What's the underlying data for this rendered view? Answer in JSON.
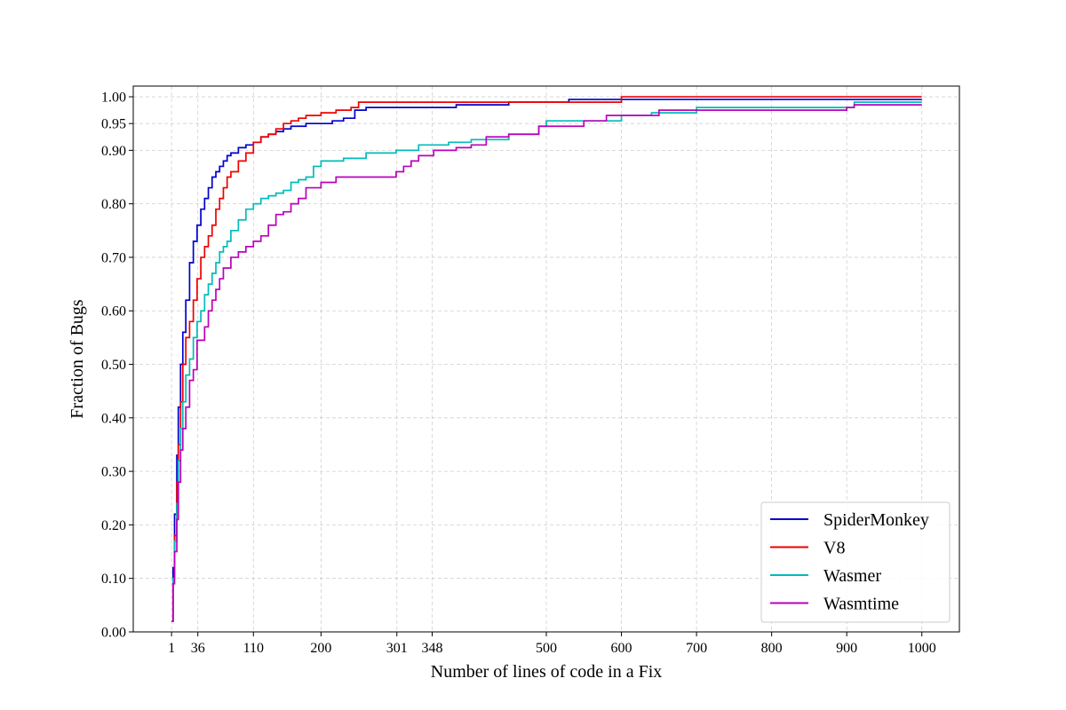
{
  "chart_data": {
    "type": "line",
    "title": "",
    "xlabel": "Number of lines of code in a Fix",
    "ylabel": "Fraction of Bugs",
    "xlim": [
      -50,
      1050
    ],
    "ylim": [
      0,
      1.02
    ],
    "xticks": [
      1,
      36,
      110,
      200,
      301,
      348,
      500,
      600,
      700,
      800,
      900,
      1000
    ],
    "yticks": [
      0.0,
      0.1,
      0.2,
      0.3,
      0.4,
      0.5,
      0.6,
      0.7,
      0.8,
      0.9,
      0.95,
      1.0
    ],
    "ytick_labels": [
      "0.00",
      "0.10",
      "0.20",
      "0.30",
      "0.40",
      "0.50",
      "0.60",
      "0.70",
      "0.80",
      "0.90",
      "0.95",
      "1.00"
    ],
    "grid": true,
    "legend_position": "bottom-right",
    "series": [
      {
        "name": "SpiderMonkey",
        "color": "#0000cc",
        "x": [
          1,
          3,
          5,
          8,
          10,
          13,
          16,
          20,
          25,
          30,
          35,
          40,
          45,
          50,
          55,
          60,
          65,
          70,
          75,
          80,
          90,
          100,
          110,
          120,
          130,
          140,
          150,
          160,
          170,
          180,
          200,
          215,
          230,
          245,
          260,
          300,
          350,
          380,
          400,
          450,
          500,
          530,
          600,
          700,
          800,
          900,
          1000
        ],
        "y": [
          0.02,
          0.12,
          0.22,
          0.33,
          0.42,
          0.5,
          0.56,
          0.62,
          0.69,
          0.73,
          0.76,
          0.79,
          0.81,
          0.83,
          0.85,
          0.86,
          0.87,
          0.88,
          0.89,
          0.895,
          0.905,
          0.91,
          0.915,
          0.925,
          0.93,
          0.935,
          0.94,
          0.945,
          0.945,
          0.95,
          0.95,
          0.955,
          0.96,
          0.975,
          0.98,
          0.98,
          0.98,
          0.985,
          0.985,
          0.99,
          0.99,
          0.995,
          0.995,
          0.995,
          0.995,
          0.995,
          0.995
        ]
      },
      {
        "name": "V8",
        "color": "#ee0000",
        "x": [
          1,
          3,
          5,
          8,
          10,
          13,
          16,
          20,
          25,
          30,
          35,
          40,
          45,
          50,
          55,
          60,
          65,
          70,
          75,
          80,
          90,
          100,
          110,
          120,
          130,
          140,
          150,
          160,
          170,
          180,
          200,
          220,
          240,
          250,
          300,
          400,
          500,
          600,
          700,
          800,
          900,
          1000
        ],
        "y": [
          0.02,
          0.1,
          0.18,
          0.28,
          0.35,
          0.43,
          0.5,
          0.55,
          0.58,
          0.62,
          0.66,
          0.7,
          0.72,
          0.74,
          0.76,
          0.79,
          0.81,
          0.83,
          0.85,
          0.86,
          0.88,
          0.895,
          0.915,
          0.925,
          0.93,
          0.94,
          0.95,
          0.955,
          0.96,
          0.965,
          0.97,
          0.975,
          0.98,
          0.99,
          0.99,
          0.99,
          0.99,
          1.0,
          1.0,
          1.0,
          1.0,
          1.0
        ]
      },
      {
        "name": "Wasmer",
        "color": "#00bbbb",
        "x": [
          1,
          3,
          5,
          8,
          10,
          13,
          16,
          20,
          25,
          30,
          35,
          40,
          45,
          50,
          55,
          60,
          65,
          70,
          75,
          80,
          90,
          100,
          110,
          120,
          130,
          140,
          150,
          160,
          170,
          180,
          190,
          200,
          230,
          260,
          300,
          330,
          370,
          400,
          450,
          490,
          500,
          550,
          600,
          640,
          700,
          800,
          900,
          910,
          1000
        ],
        "y": [
          0.02,
          0.1,
          0.17,
          0.24,
          0.32,
          0.38,
          0.43,
          0.48,
          0.51,
          0.55,
          0.58,
          0.6,
          0.63,
          0.65,
          0.67,
          0.69,
          0.71,
          0.72,
          0.73,
          0.75,
          0.77,
          0.79,
          0.8,
          0.81,
          0.815,
          0.82,
          0.825,
          0.84,
          0.845,
          0.85,
          0.87,
          0.88,
          0.885,
          0.895,
          0.9,
          0.91,
          0.915,
          0.92,
          0.93,
          0.945,
          0.955,
          0.955,
          0.965,
          0.97,
          0.98,
          0.98,
          0.98,
          0.99,
          0.99
        ]
      },
      {
        "name": "Wasmtime",
        "color": "#bb00bb",
        "x": [
          1,
          3,
          5,
          8,
          10,
          13,
          16,
          20,
          25,
          30,
          35,
          40,
          45,
          50,
          55,
          60,
          65,
          70,
          80,
          90,
          100,
          110,
          120,
          130,
          140,
          150,
          160,
          170,
          180,
          200,
          220,
          260,
          300,
          310,
          320,
          330,
          350,
          380,
          400,
          420,
          450,
          490,
          500,
          550,
          580,
          600,
          650,
          700,
          800,
          900,
          910,
          1000
        ],
        "y": [
          0.02,
          0.09,
          0.15,
          0.21,
          0.28,
          0.34,
          0.38,
          0.42,
          0.47,
          0.49,
          0.545,
          0.545,
          0.57,
          0.6,
          0.62,
          0.64,
          0.66,
          0.68,
          0.7,
          0.71,
          0.72,
          0.73,
          0.74,
          0.76,
          0.78,
          0.785,
          0.8,
          0.81,
          0.83,
          0.84,
          0.85,
          0.85,
          0.86,
          0.87,
          0.88,
          0.89,
          0.9,
          0.905,
          0.91,
          0.925,
          0.93,
          0.945,
          0.945,
          0.955,
          0.965,
          0.965,
          0.975,
          0.975,
          0.975,
          0.98,
          0.985,
          0.985
        ]
      }
    ]
  }
}
